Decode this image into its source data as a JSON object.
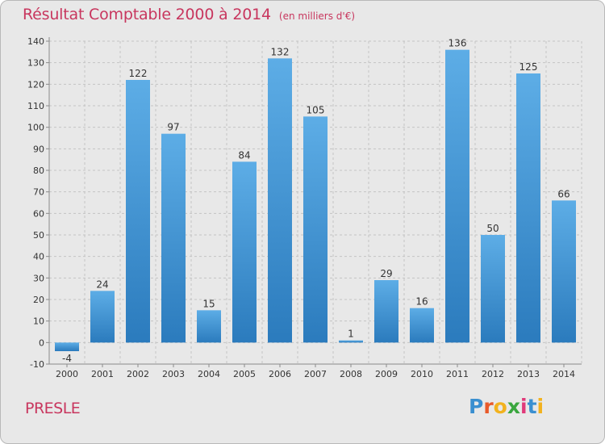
{
  "header": {
    "title": "Résultat Comptable 2000 à 2014",
    "unit": "(en milliers d'€)"
  },
  "footer": {
    "commune": "PRESLE",
    "logo_text": "Proxiti",
    "logo_letters": [
      {
        "ch": "P",
        "color": "#3a8fd0"
      },
      {
        "ch": "r",
        "color": "#e85a2a"
      },
      {
        "ch": "o",
        "color": "#f2b21e"
      },
      {
        "ch": "x",
        "color": "#3aa63e"
      },
      {
        "ch": "i",
        "color": "#e03a7a"
      },
      {
        "ch": "t",
        "color": "#3a8fd0"
      },
      {
        "ch": "i",
        "color": "#f2b21e"
      }
    ]
  },
  "chart_data": {
    "type": "bar",
    "categories": [
      "2000",
      "2001",
      "2002",
      "2003",
      "2004",
      "2005",
      "2006",
      "2007",
      "2008",
      "2009",
      "2010",
      "2011",
      "2012",
      "2013",
      "2014"
    ],
    "values": [
      -4,
      24,
      122,
      97,
      15,
      84,
      132,
      105,
      1,
      29,
      16,
      136,
      50,
      125,
      66
    ],
    "value_labels": [
      "-4",
      "24",
      "122",
      "97",
      "15",
      "84",
      "132",
      "105",
      "1",
      "29",
      "16",
      "136",
      "50",
      "125",
      "66"
    ],
    "y_ticks": [
      -10,
      0,
      10,
      20,
      30,
      40,
      50,
      60,
      70,
      80,
      90,
      100,
      110,
      120,
      130,
      140
    ],
    "ylim": [
      -10,
      140
    ],
    "grid": true,
    "colors": {
      "bar_light": "#5dade6",
      "bar_dark": "#2b7bbd",
      "grid": "#c4c4c4",
      "axis": "#8a8a8a",
      "text": "#333333"
    }
  }
}
